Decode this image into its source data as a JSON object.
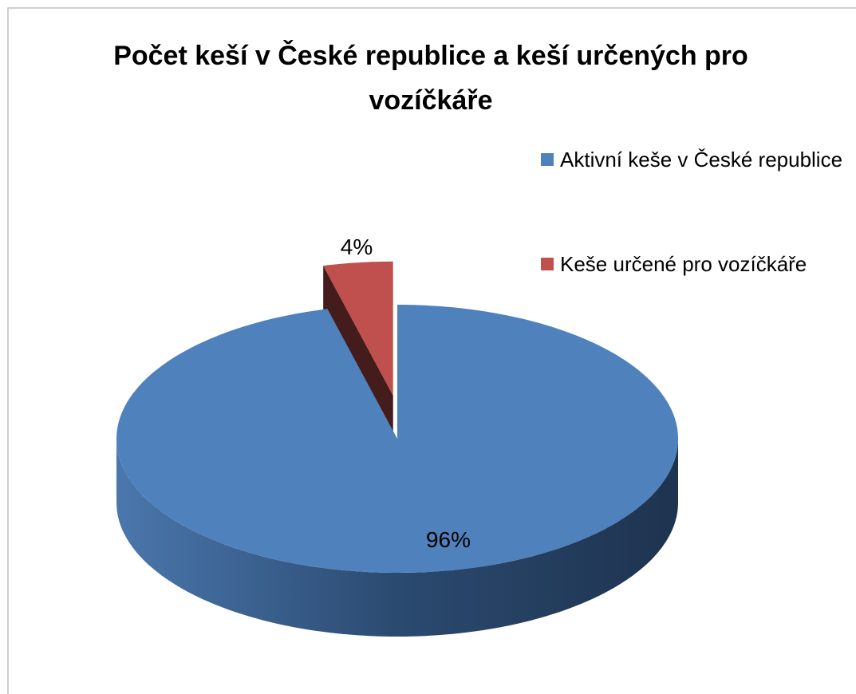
{
  "chart_data": {
    "type": "pie3d",
    "title": "Počet keší v České republice a keší určených pro vozíčkáře",
    "categories": [
      "Aktivní keše v České republice",
      "Keše určené pro vozíčkáře"
    ],
    "values": [
      96,
      4
    ],
    "value_labels": [
      "96%",
      "4%"
    ],
    "colors": [
      "#4f81bd",
      "#c0504d"
    ],
    "legend": "right"
  }
}
